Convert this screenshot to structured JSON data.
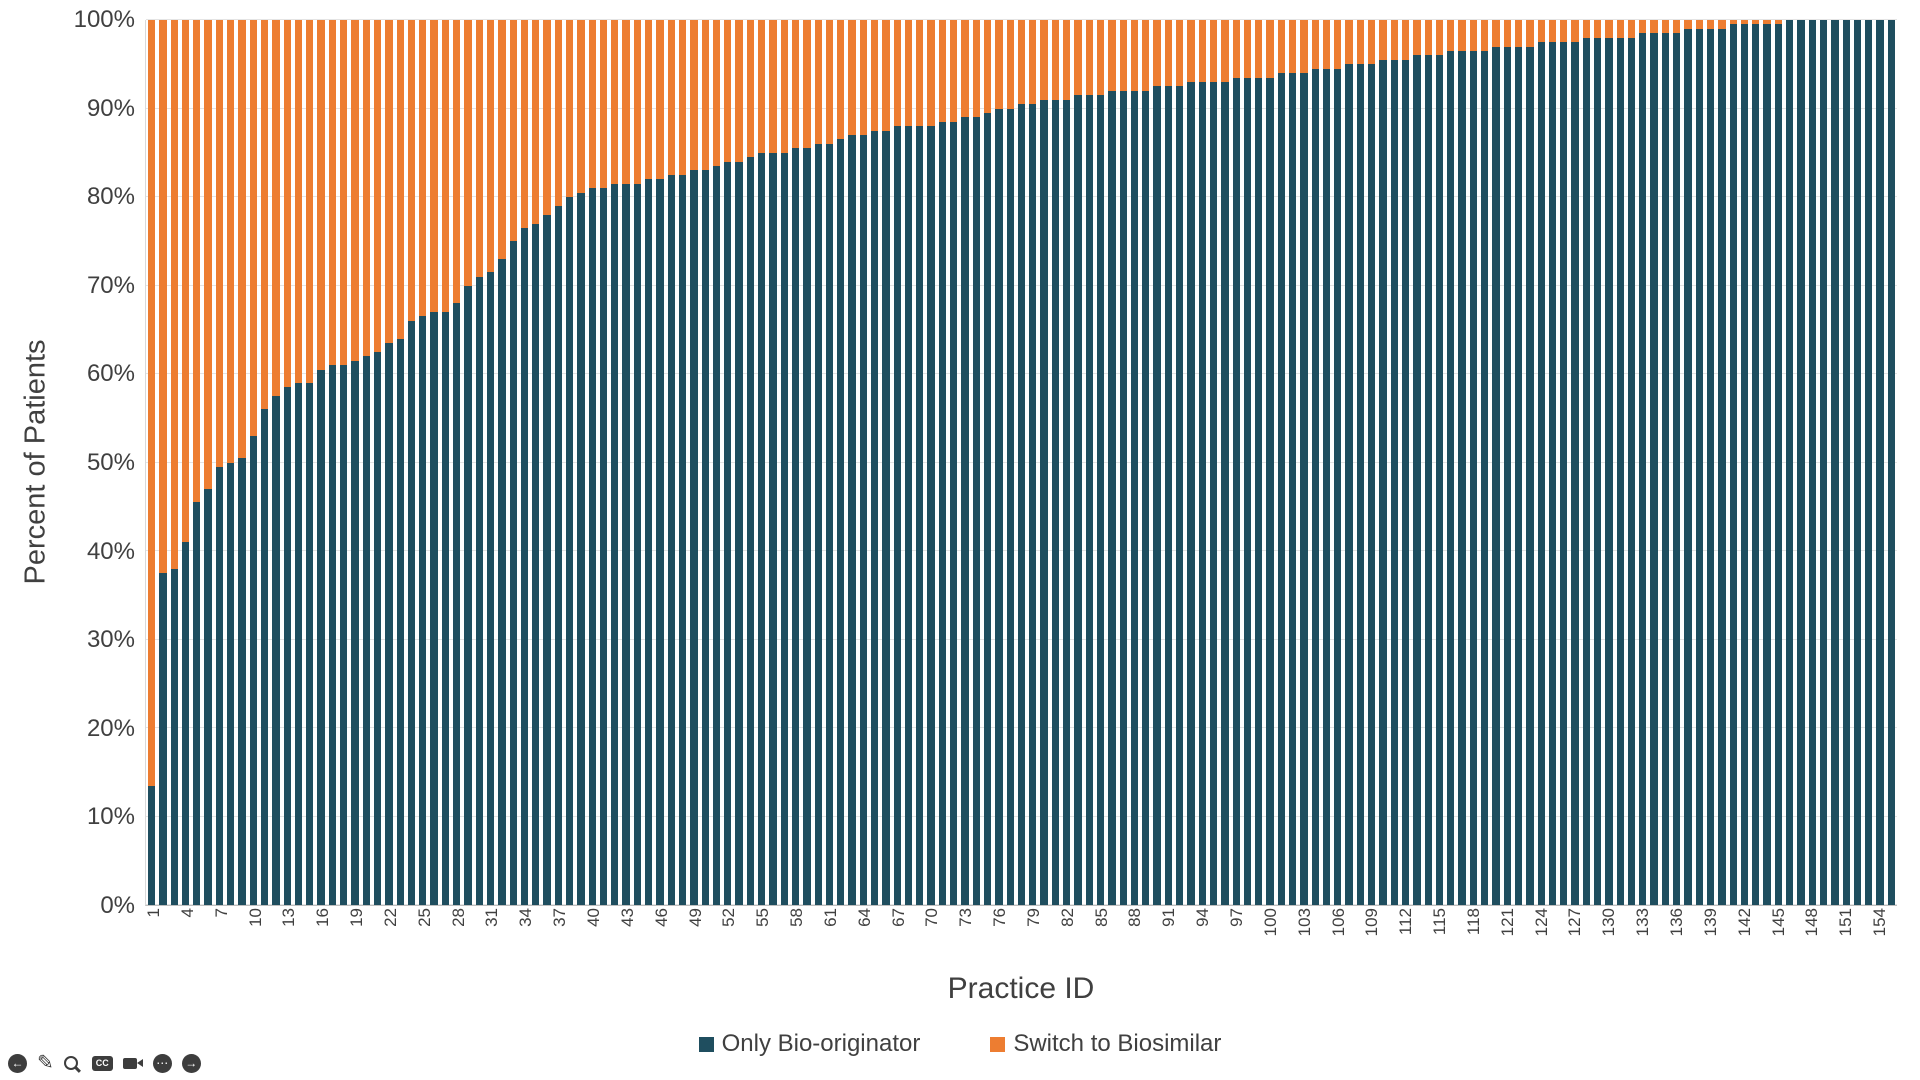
{
  "colors": {
    "bio_originator_blue": "#1F4E5F",
    "biosimilar_orange": "#ED7D31",
    "gridline": "#E4E4E4",
    "axis_text": "#404040"
  },
  "chart_data": {
    "type": "bar",
    "subtype": "100-percent-stacked-column",
    "title": "",
    "xlabel": "Practice ID",
    "ylabel": "Percent of Patients",
    "ylim": [
      0,
      100
    ],
    "grid": "horizontal",
    "legend_position": "bottom",
    "yticks": [
      "0%",
      "10%",
      "20%",
      "30%",
      "40%",
      "50%",
      "60%",
      "70%",
      "80%",
      "90%",
      "100%"
    ],
    "n_practices": 155,
    "x_range": [
      1,
      155
    ],
    "xtick_step": 3,
    "xticks": [
      1,
      4,
      7,
      10,
      13,
      16,
      19,
      22,
      25,
      28,
      31,
      34,
      37,
      40,
      43,
      46,
      49,
      52,
      55,
      58,
      61,
      64,
      67,
      70,
      73,
      76,
      79,
      82,
      85,
      88,
      91,
      94,
      97,
      100,
      103,
      106,
      109,
      112,
      115,
      118,
      121,
      124,
      127,
      130,
      133,
      136,
      139,
      142,
      145,
      148,
      151,
      154
    ],
    "series": [
      {
        "name": "Only Bio-originator",
        "color": "#1F4E5F",
        "values": [
          13.5,
          37.5,
          38,
          41,
          45.5,
          47,
          49.5,
          50,
          50.5,
          53,
          56,
          57.5,
          58.5,
          59,
          59,
          60.5,
          61,
          61,
          61.5,
          62,
          62.5,
          63.5,
          64,
          66,
          66.5,
          67,
          67,
          68,
          70,
          71,
          71.5,
          73,
          75,
          76.5,
          77,
          78,
          79,
          80,
          80.5,
          81,
          81,
          81.5,
          81.5,
          81.5,
          82,
          82,
          82.5,
          82.5,
          83,
          83,
          83.5,
          84,
          84,
          84.5,
          85,
          85,
          85,
          85.5,
          85.5,
          86,
          86,
          86.5,
          87,
          87,
          87.5,
          87.5,
          88,
          88,
          88,
          88,
          88.5,
          88.5,
          89,
          89,
          89.5,
          90,
          90,
          90.5,
          90.5,
          91,
          91,
          91,
          91.5,
          91.5,
          91.5,
          92,
          92,
          92,
          92,
          92.5,
          92.5,
          92.5,
          93,
          93,
          93,
          93,
          93.5,
          93.5,
          93.5,
          93.5,
          94,
          94,
          94,
          94.5,
          94.5,
          94.5,
          95,
          95,
          95,
          95.5,
          95.5,
          95.5,
          96,
          96,
          96,
          96.5,
          96.5,
          96.5,
          96.5,
          97,
          97,
          97,
          97,
          97.5,
          97.5,
          97.5,
          97.5,
          98,
          98,
          98,
          98,
          98,
          98.5,
          98.5,
          98.5,
          98.5,
          99,
          99,
          99,
          99,
          99.5,
          99.5,
          99.5,
          99.5,
          99.5,
          100,
          100,
          100,
          100,
          100,
          100,
          100,
          100,
          100,
          100
        ]
      },
      {
        "name": "Switch to Biosimilar",
        "color": "#ED7D31",
        "values": [
          86.5,
          62.5,
          62,
          59,
          54.5,
          53,
          50.5,
          50,
          49.5,
          47,
          44,
          42.5,
          41.5,
          41,
          41,
          39.5,
          39,
          39,
          38.5,
          38,
          37.5,
          36.5,
          36,
          34,
          33.5,
          33,
          33,
          32,
          30,
          29,
          28.5,
          27,
          25,
          23.5,
          23,
          22,
          21,
          20,
          19.5,
          19,
          19,
          18.5,
          18.5,
          18.5,
          18,
          18,
          17.5,
          17.5,
          17,
          17,
          16.5,
          16,
          16,
          15.5,
          15,
          15,
          15,
          14.5,
          14.5,
          14,
          14,
          13.5,
          13,
          13,
          12.5,
          12.5,
          12,
          12,
          12,
          12,
          11.5,
          11.5,
          11,
          11,
          10.5,
          10,
          10,
          9.5,
          9.5,
          9,
          9,
          9,
          8.5,
          8.5,
          8.5,
          8,
          8,
          8,
          8,
          7.5,
          7.5,
          7.5,
          7,
          7,
          7,
          7,
          6.5,
          6.5,
          6.5,
          6.5,
          6,
          6,
          6,
          5.5,
          5.5,
          5.5,
          5,
          5,
          5,
          4.5,
          4.5,
          4.5,
          4,
          4,
          4,
          3.5,
          3.5,
          3.5,
          3.5,
          3,
          3,
          3,
          3,
          2.5,
          2.5,
          2.5,
          2.5,
          2,
          2,
          2,
          2,
          2,
          1.5,
          1.5,
          1.5,
          1.5,
          1,
          1,
          1,
          1,
          0.5,
          0.5,
          0.5,
          0.5,
          0.5,
          0,
          0,
          0,
          0,
          0,
          0,
          0,
          0,
          0,
          0
        ]
      }
    ]
  },
  "toolbar": {
    "icons": [
      {
        "name": "back",
        "glyph": "←"
      },
      {
        "name": "edit",
        "glyph": "✎"
      },
      {
        "name": "search",
        "glyph": ""
      },
      {
        "name": "captions",
        "glyph": "CC"
      },
      {
        "name": "camera",
        "glyph": ""
      },
      {
        "name": "more",
        "glyph": "⋯"
      },
      {
        "name": "forward",
        "glyph": "→"
      }
    ]
  }
}
